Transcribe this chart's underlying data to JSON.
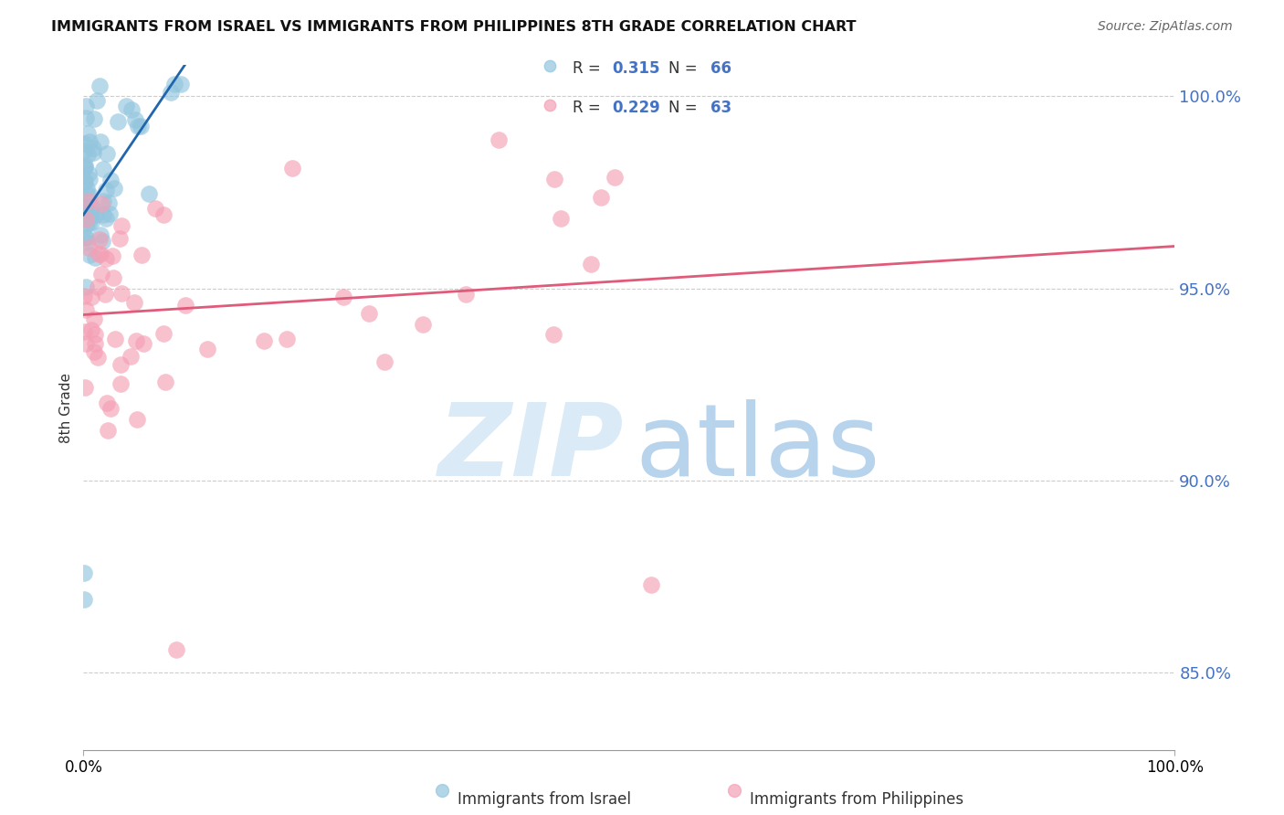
{
  "title": "IMMIGRANTS FROM ISRAEL VS IMMIGRANTS FROM PHILIPPINES 8TH GRADE CORRELATION CHART",
  "source": "Source: ZipAtlas.com",
  "ylabel": "8th Grade",
  "legend_israel": "Immigrants from Israel",
  "legend_philippines": "Immigrants from Philippines",
  "R_israel": 0.315,
  "N_israel": 66,
  "R_philippines": 0.229,
  "N_philippines": 63,
  "color_israel": "#92c5de",
  "color_philippines": "#f4a0b5",
  "line_color_israel": "#2166ac",
  "line_color_philippines": "#e05a7a",
  "right_axis_color": "#4472c4",
  "watermark_zip_color": "#daeaf7",
  "watermark_atlas_color": "#b8d4ed",
  "ylim": [
    0.83,
    1.008
  ],
  "xlim": [
    0.0,
    1.0
  ],
  "yticks": [
    0.85,
    0.9,
    0.95,
    1.0
  ],
  "ytick_labels": [
    "85.0%",
    "90.0%",
    "95.0%",
    "100.0%"
  ],
  "grid_color": "#cccccc"
}
